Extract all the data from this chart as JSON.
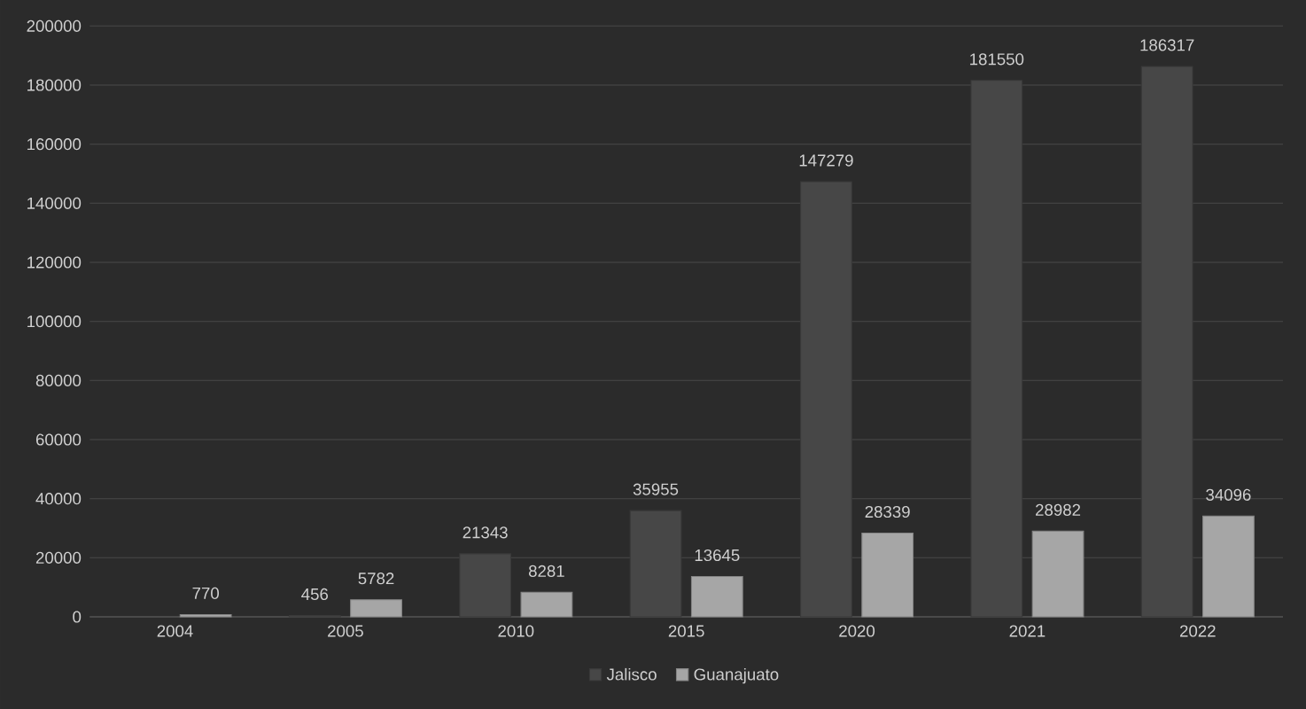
{
  "chart_data": {
    "type": "bar",
    "categories": [
      "2004",
      "2005",
      "2010",
      "2015",
      "2020",
      "2021",
      "2022"
    ],
    "series": [
      {
        "name": "Jalisco",
        "color": "#474747",
        "values": [
          null,
          456,
          21343,
          35955,
          147279,
          181550,
          186317
        ]
      },
      {
        "name": "Guanajuato",
        "color": "#a6a6a6",
        "values": [
          770,
          5782,
          8281,
          13645,
          28339,
          28982,
          34096
        ]
      }
    ],
    "ylim": [
      0,
      200000
    ],
    "yticks": [
      0,
      20000,
      40000,
      60000,
      80000,
      100000,
      120000,
      140000,
      160000,
      180000,
      200000
    ],
    "grid": "y",
    "legend": "bottom",
    "data_labels": true
  }
}
